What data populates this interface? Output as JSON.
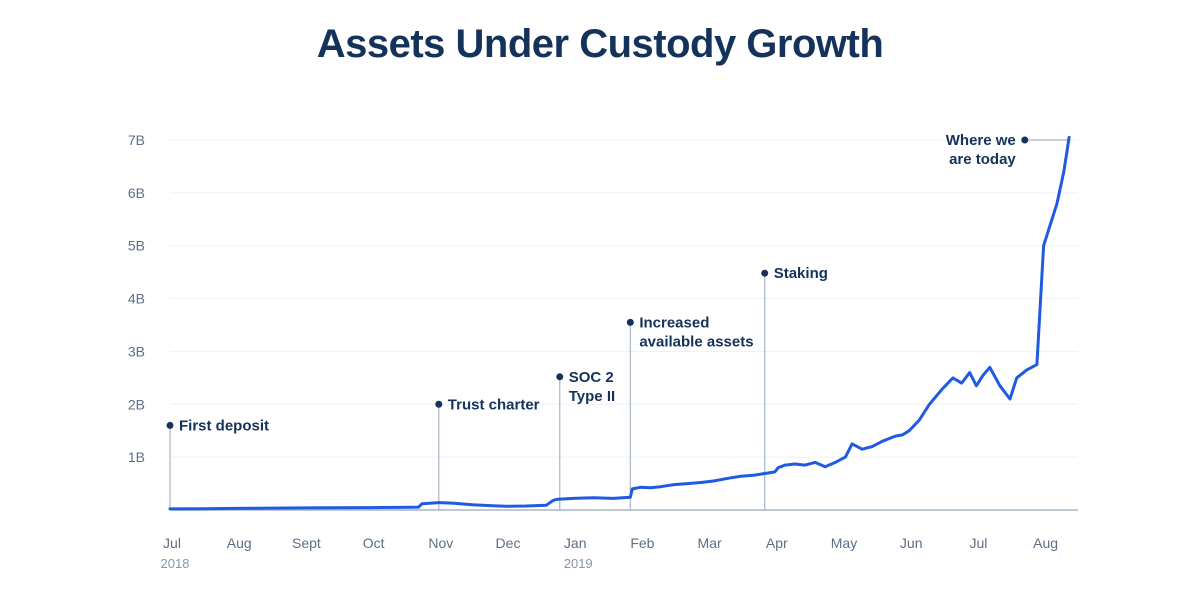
{
  "chart_data": {
    "type": "line",
    "title": "Assets Under Custody Growth",
    "xlabel": "",
    "ylabel": "",
    "ylim": [
      0,
      7000000000
    ],
    "y_ticks": [
      {
        "value": 1000000000,
        "label": "1B"
      },
      {
        "value": 2000000000,
        "label": "2B"
      },
      {
        "value": 3000000000,
        "label": "3B"
      },
      {
        "value": 4000000000,
        "label": "4B"
      },
      {
        "value": 5000000000,
        "label": "5B"
      },
      {
        "value": 6000000000,
        "label": "6B"
      },
      {
        "value": 7000000000,
        "label": "7B"
      }
    ],
    "xlim": [
      0,
      13.5
    ],
    "x_ticks": [
      {
        "value": 0,
        "label": "Jul"
      },
      {
        "value": 1,
        "label": "Aug"
      },
      {
        "value": 2,
        "label": "Sept"
      },
      {
        "value": 3,
        "label": "Oct"
      },
      {
        "value": 4,
        "label": "Nov"
      },
      {
        "value": 5,
        "label": "Dec"
      },
      {
        "value": 6,
        "label": "Jan"
      },
      {
        "value": 7,
        "label": "Feb"
      },
      {
        "value": 8,
        "label": "Mar"
      },
      {
        "value": 9,
        "label": "Apr"
      },
      {
        "value": 10,
        "label": "May"
      },
      {
        "value": 11,
        "label": "Jun"
      },
      {
        "value": 12,
        "label": "Jul"
      },
      {
        "value": 13,
        "label": "Aug"
      }
    ],
    "year_labels": [
      {
        "value": 0,
        "label": "2018"
      },
      {
        "value": 6,
        "label": "2019"
      }
    ],
    "series": [
      {
        "name": "Assets Under Custody",
        "color": "#1f5ae0",
        "x": [
          0,
          0.5,
          1,
          1.5,
          2,
          2.5,
          3,
          3.4,
          3.7,
          3.75,
          4.0,
          4.2,
          4.5,
          4.8,
          5.0,
          5.3,
          5.6,
          5.7,
          5.75,
          6.0,
          6.3,
          6.6,
          6.85,
          6.88,
          7.0,
          7.15,
          7.3,
          7.5,
          7.7,
          7.9,
          8.1,
          8.3,
          8.5,
          8.7,
          8.9,
          9.0,
          9.05,
          9.15,
          9.3,
          9.45,
          9.6,
          9.75,
          9.9,
          10.05,
          10.15,
          10.3,
          10.45,
          10.6,
          10.7,
          10.8,
          10.9,
          11.0,
          11.15,
          11.3,
          11.5,
          11.65,
          11.78,
          11.9,
          12.0,
          12.1,
          12.2,
          12.35,
          12.5,
          12.6,
          12.75,
          12.9,
          13.0,
          13.1,
          13.2,
          13.3,
          13.35,
          13.38
        ],
        "values": [
          20000000,
          25000000,
          30000000,
          35000000,
          40000000,
          42000000,
          45000000,
          50000000,
          55000000,
          120000000,
          140000000,
          130000000,
          100000000,
          80000000,
          70000000,
          75000000,
          90000000,
          180000000,
          200000000,
          220000000,
          230000000,
          220000000,
          240000000,
          400000000,
          430000000,
          420000000,
          440000000,
          480000000,
          500000000,
          520000000,
          550000000,
          600000000,
          640000000,
          660000000,
          700000000,
          720000000,
          800000000,
          850000000,
          870000000,
          850000000,
          900000000,
          820000000,
          900000000,
          1000000000,
          1250000000,
          1150000000,
          1200000000,
          1300000000,
          1350000000,
          1400000000,
          1420000000,
          1500000000,
          1700000000,
          2000000000,
          2300000000,
          2500000000,
          2400000000,
          2600000000,
          2350000000,
          2550000000,
          2700000000,
          2350000000,
          2100000000,
          2500000000,
          2650000000,
          2750000000,
          5000000000,
          5400000000,
          5800000000,
          6400000000,
          6800000000,
          7050000000
        ]
      }
    ],
    "annotations": [
      {
        "label_lines": [
          "First deposit"
        ],
        "x": 0,
        "y": 1600000000
      },
      {
        "label_lines": [
          "Trust charter"
        ],
        "x": 4.0,
        "y": 2000000000
      },
      {
        "label_lines": [
          "SOC 2",
          "Type II"
        ],
        "x": 5.8,
        "y": 2520000000
      },
      {
        "label_lines": [
          "Increased",
          "available assets"
        ],
        "x": 6.85,
        "y": 3550000000
      },
      {
        "label_lines": [
          "Staking"
        ],
        "x": 8.85,
        "y": 4480000000
      },
      {
        "label_lines": [
          "Where we",
          "are today"
        ],
        "x": 12.72,
        "y": 7000000000
      }
    ]
  }
}
